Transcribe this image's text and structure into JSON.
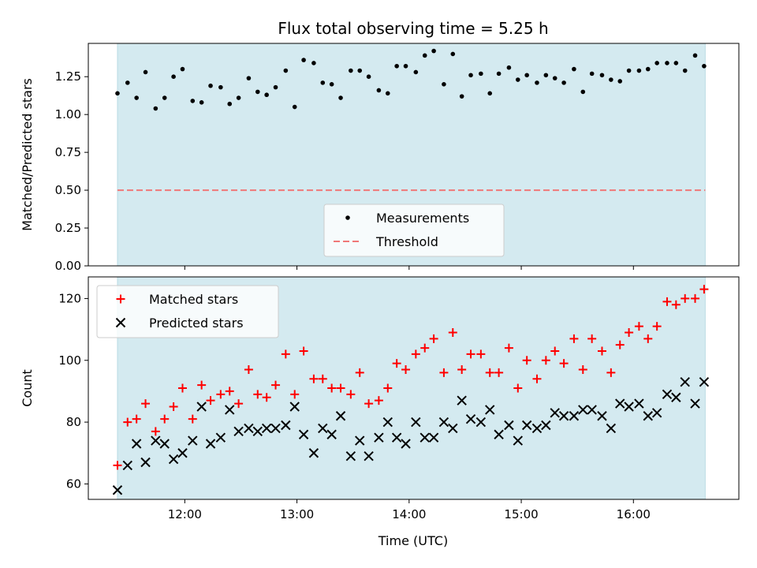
{
  "chart_data": {
    "title": "Flux total observing time = 5.25 h",
    "xlabel": "Time (UTC)",
    "x_unit": "hours UTC",
    "xlim": [
      11.14,
      16.94
    ],
    "x_ticks": [
      12,
      13,
      14,
      15,
      16
    ],
    "x_tick_labels": [
      "12:00",
      "13:00",
      "14:00",
      "15:00",
      "16:00"
    ],
    "observing_window": [
      11.4,
      16.64
    ],
    "shading_color": "#d4eaf0",
    "panels": [
      {
        "type": "scatter",
        "ylabel": "Matched/Predicted stars",
        "ylim": [
          0,
          1.47
        ],
        "y_ticks": [
          0,
          0.25,
          0.5,
          0.75,
          1.0,
          1.25
        ],
        "y_tick_labels": [
          "0.00",
          "0.25",
          "0.50",
          "0.75",
          "1.00",
          "1.25"
        ],
        "legend_position": "lower center",
        "series": [
          {
            "name": "Measurements",
            "marker": "dot",
            "color": "#000000",
            "x": [
              11.4,
              11.49,
              11.57,
              11.65,
              11.74,
              11.82,
              11.9,
              11.98,
              12.07,
              12.15,
              12.23,
              12.32,
              12.4,
              12.48,
              12.57,
              12.65,
              12.73,
              12.81,
              12.9,
              12.98,
              13.06,
              13.15,
              13.23,
              13.31,
              13.39,
              13.48,
              13.56,
              13.64,
              13.73,
              13.81,
              13.89,
              13.97,
              14.06,
              14.14,
              14.22,
              14.31,
              14.39,
              14.47,
              14.55,
              14.64,
              14.72,
              14.8,
              14.89,
              14.97,
              15.05,
              15.14,
              15.22,
              15.3,
              15.38,
              15.47,
              15.55,
              15.63,
              15.72,
              15.8,
              15.88,
              15.96,
              16.05,
              16.13,
              16.21,
              16.3,
              16.38,
              16.46,
              16.55,
              16.63
            ],
            "y": [
              1.14,
              1.21,
              1.11,
              1.28,
              1.04,
              1.11,
              1.25,
              1.3,
              1.09,
              1.08,
              1.19,
              1.18,
              1.07,
              1.11,
              1.24,
              1.15,
              1.13,
              1.18,
              1.29,
              1.05,
              1.36,
              1.34,
              1.21,
              1.2,
              1.11,
              1.29,
              1.29,
              1.25,
              1.16,
              1.14,
              1.32,
              1.32,
              1.28,
              1.39,
              1.42,
              1.2,
              1.4,
              1.12,
              1.26,
              1.27,
              1.14,
              1.27,
              1.31,
              1.23,
              1.26,
              1.21,
              1.26,
              1.24,
              1.21,
              1.3,
              1.15,
              1.27,
              1.26,
              1.23,
              1.22,
              1.29,
              1.29,
              1.3,
              1.34,
              1.34,
              1.34,
              1.29,
              1.39,
              1.32
            ]
          },
          {
            "name": "Threshold",
            "type": "hline",
            "style": "dashed",
            "color": "#f07878",
            "y_value": 0.5
          }
        ]
      },
      {
        "type": "scatter",
        "ylabel": "Count",
        "ylim": [
          55,
          127
        ],
        "y_ticks": [
          60,
          80,
          100,
          120
        ],
        "y_tick_labels": [
          "60",
          "80",
          "100",
          "120"
        ],
        "legend_position": "upper left",
        "series": [
          {
            "name": "Matched stars",
            "marker": "plus",
            "color": "#ff0000",
            "x": [
              11.4,
              11.49,
              11.57,
              11.65,
              11.74,
              11.82,
              11.9,
              11.98,
              12.07,
              12.15,
              12.23,
              12.32,
              12.4,
              12.48,
              12.57,
              12.65,
              12.73,
              12.81,
              12.9,
              12.98,
              13.06,
              13.15,
              13.23,
              13.31,
              13.39,
              13.48,
              13.56,
              13.64,
              13.73,
              13.81,
              13.89,
              13.97,
              14.06,
              14.14,
              14.22,
              14.31,
              14.39,
              14.47,
              14.55,
              14.64,
              14.72,
              14.8,
              14.89,
              14.97,
              15.05,
              15.14,
              15.22,
              15.3,
              15.38,
              15.47,
              15.55,
              15.63,
              15.72,
              15.8,
              15.88,
              15.96,
              16.05,
              16.13,
              16.21,
              16.3,
              16.38,
              16.46,
              16.55,
              16.63
            ],
            "y": [
              66,
              80,
              81,
              86,
              77,
              81,
              85,
              91,
              81,
              92,
              87,
              89,
              90,
              86,
              97,
              89,
              88,
              92,
              102,
              89,
              103,
              94,
              94,
              91,
              91,
              89,
              96,
              86,
              87,
              91,
              99,
              97,
              102,
              104,
              107,
              96,
              109,
              97,
              102,
              102,
              96,
              96,
              104,
              91,
              100,
              94,
              100,
              103,
              99,
              107,
              97,
              107,
              103,
              96,
              105,
              109,
              111,
              107,
              111,
              119,
              118,
              120,
              120,
              123
            ]
          },
          {
            "name": "Predicted stars",
            "marker": "x",
            "color": "#000000",
            "x": [
              11.4,
              11.49,
              11.57,
              11.65,
              11.74,
              11.82,
              11.9,
              11.98,
              12.07,
              12.15,
              12.23,
              12.32,
              12.4,
              12.48,
              12.57,
              12.65,
              12.73,
              12.81,
              12.9,
              12.98,
              13.06,
              13.15,
              13.23,
              13.31,
              13.39,
              13.48,
              13.56,
              13.64,
              13.73,
              13.81,
              13.89,
              13.97,
              14.06,
              14.14,
              14.22,
              14.31,
              14.39,
              14.47,
              14.55,
              14.64,
              14.72,
              14.8,
              14.89,
              14.97,
              15.05,
              15.14,
              15.22,
              15.3,
              15.38,
              15.47,
              15.55,
              15.63,
              15.72,
              15.8,
              15.88,
              15.96,
              16.05,
              16.13,
              16.21,
              16.3,
              16.38,
              16.46,
              16.55,
              16.63
            ],
            "y": [
              58,
              66,
              73,
              67,
              74,
              73,
              68,
              70,
              74,
              85,
              73,
              75,
              84,
              77,
              78,
              77,
              78,
              78,
              79,
              85,
              76,
              70,
              78,
              76,
              82,
              69,
              74,
              69,
              75,
              80,
              75,
              73,
              80,
              75,
              75,
              80,
              78,
              87,
              81,
              80,
              84,
              76,
              79,
              74,
              79,
              78,
              79,
              83,
              82,
              82,
              84,
              84,
              82,
              78,
              86,
              85,
              86,
              82,
              83,
              89,
              88,
              93,
              86,
              93
            ]
          }
        ]
      }
    ]
  }
}
